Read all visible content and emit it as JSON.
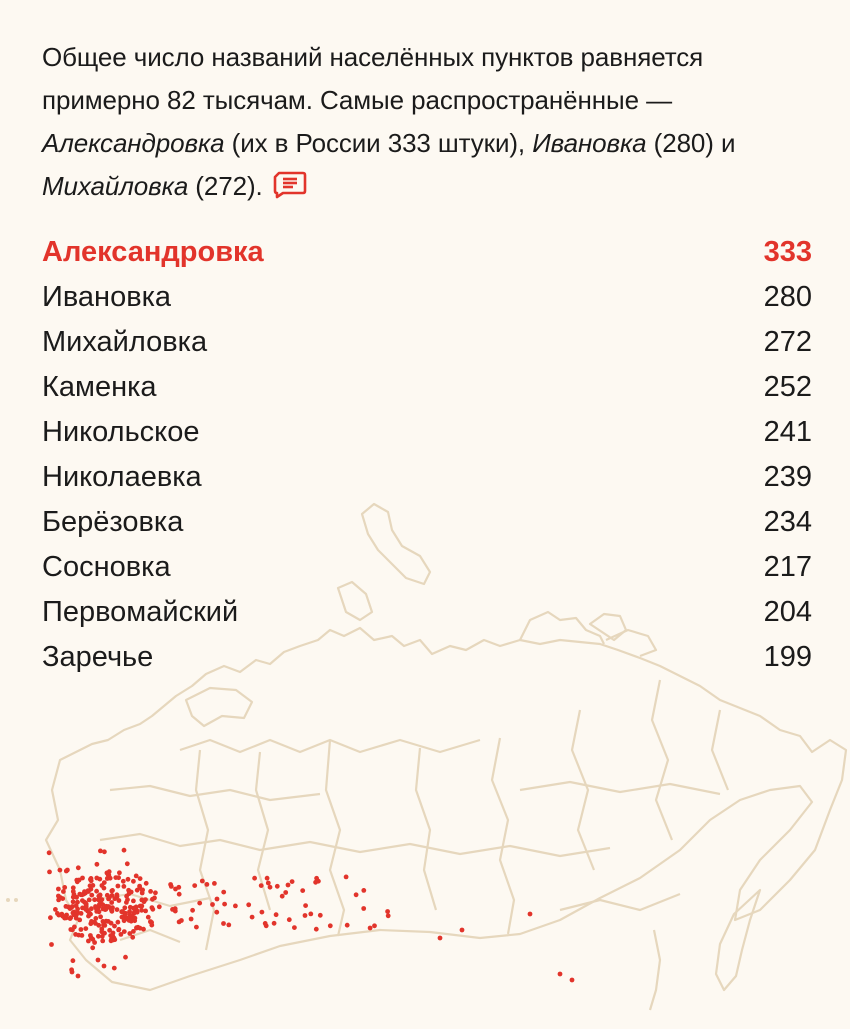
{
  "intro": {
    "text_1": "Общее число названий населённых пунктов равняется примерно 82 тысячам. Самые распространённые — ",
    "name_1": "Александровка",
    "text_2": " (их в России 333 штуки), ",
    "name_2": "Ивановка",
    "text_3": " (280) и ",
    "name_3": "Михайловка",
    "text_4": " (272).",
    "comment_icon": "comment-icon"
  },
  "ranking": [
    {
      "name": "Александровка",
      "count": "333"
    },
    {
      "name": "Ивановка",
      "count": "280"
    },
    {
      "name": "Михайловка",
      "count": "272"
    },
    {
      "name": "Каменка",
      "count": "252"
    },
    {
      "name": "Никольское",
      "count": "241"
    },
    {
      "name": "Николаевка",
      "count": "239"
    },
    {
      "name": "Берёзовка",
      "count": "234"
    },
    {
      "name": "Сосновка",
      "count": "217"
    },
    {
      "name": "Первомайский",
      "count": "204"
    },
    {
      "name": "Заречье",
      "count": "199"
    }
  ],
  "colors": {
    "accent": "#e2342b",
    "text": "#1b1b1b",
    "background": "#fdf9f2",
    "map_outline": "#e6d7bd"
  }
}
